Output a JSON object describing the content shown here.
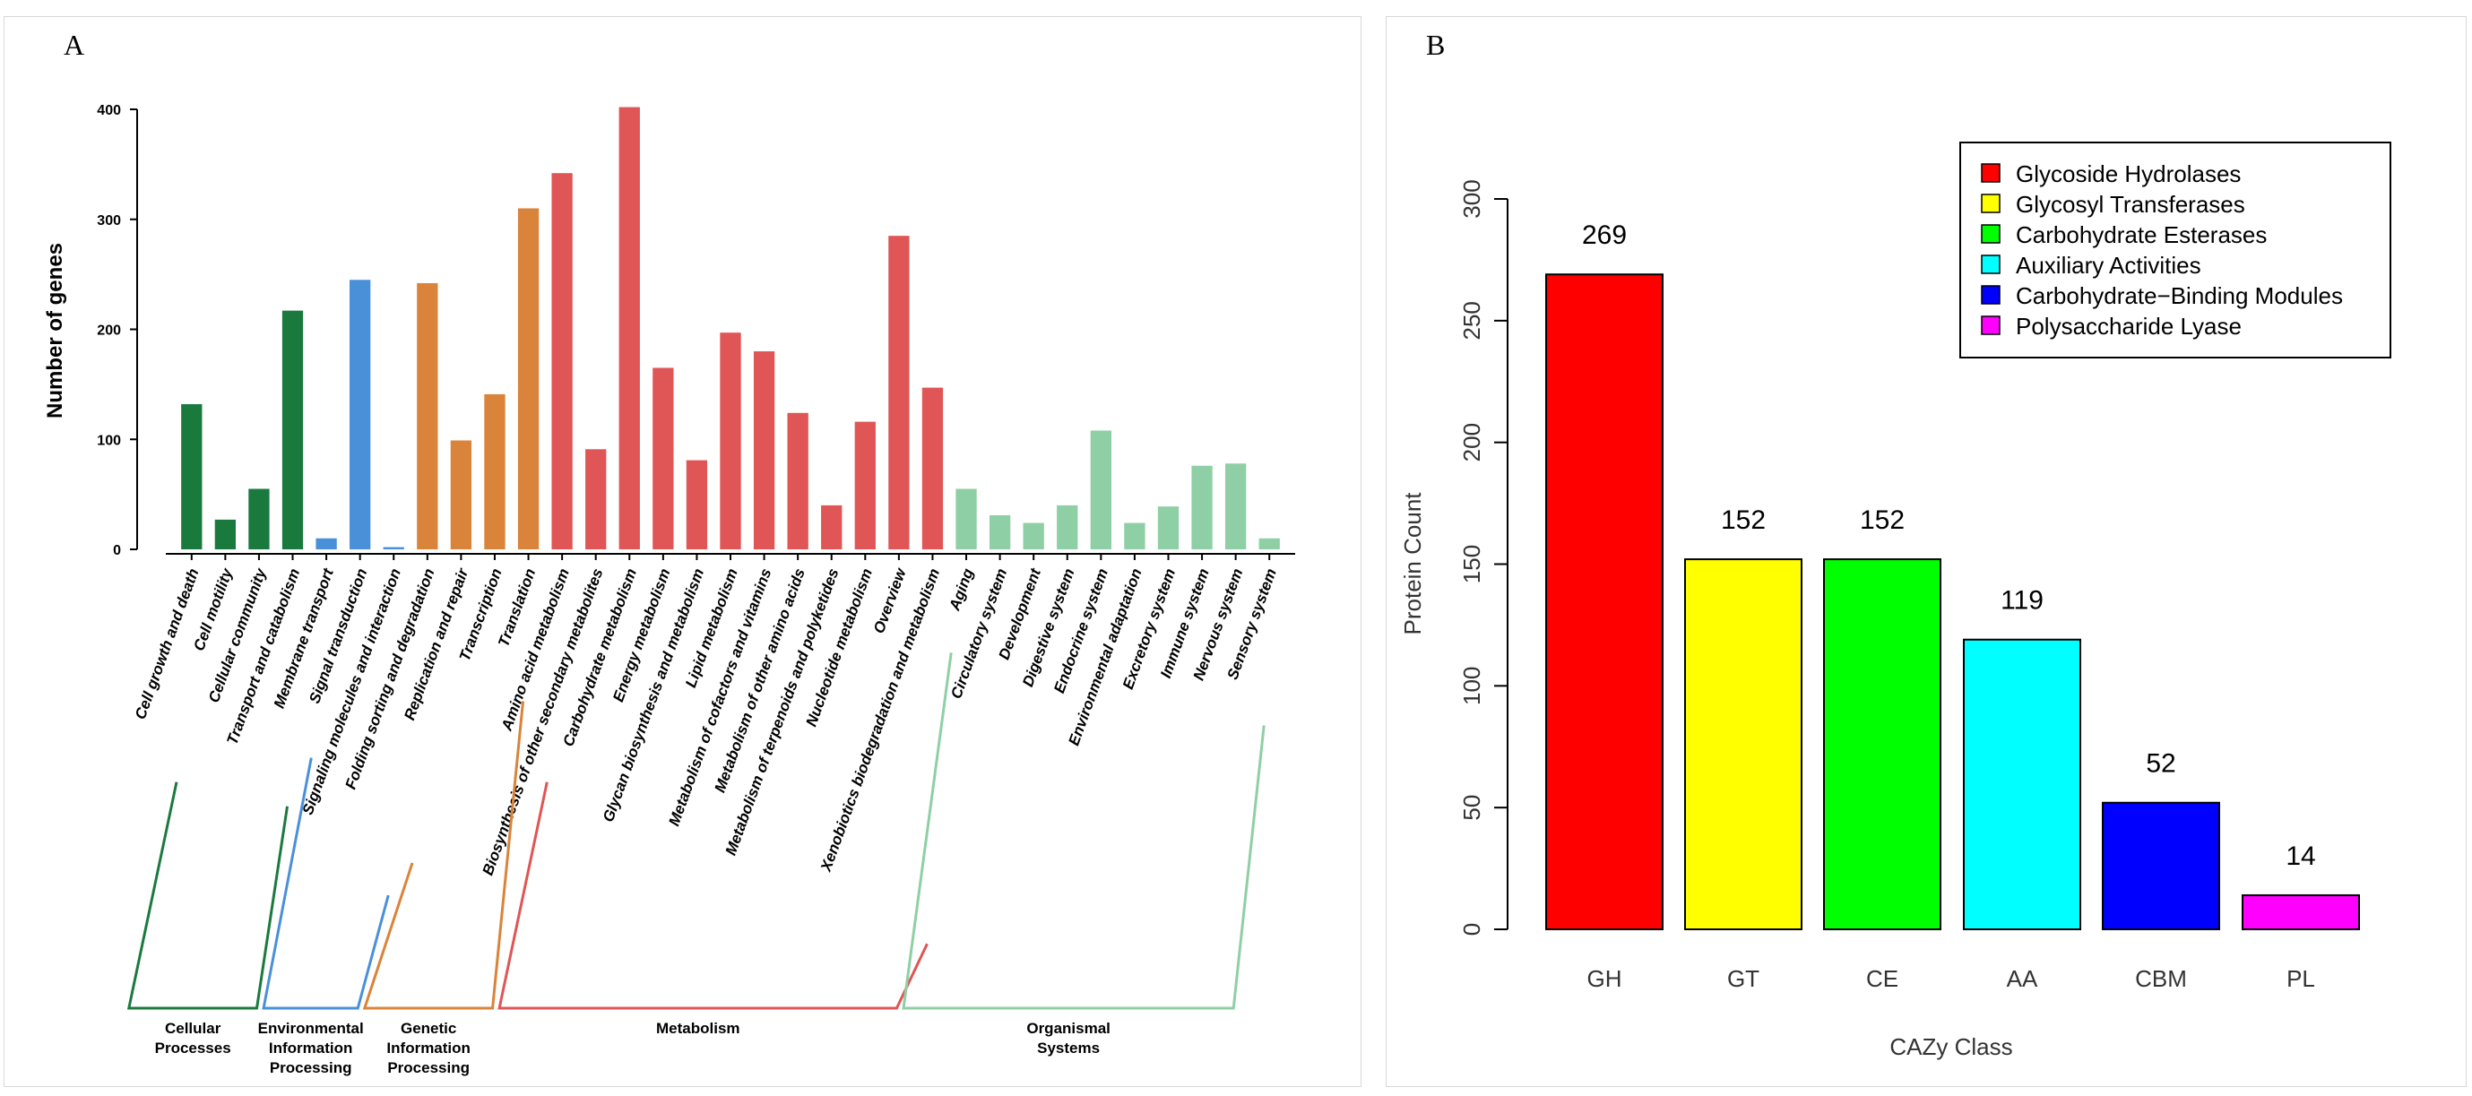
{
  "chart_data": [
    {
      "panel_label": "A",
      "type": "bar",
      "title": "",
      "xlabel": "",
      "ylabel": "Number of genes",
      "ylim": [
        0,
        400
      ],
      "yticks": [
        0,
        100,
        200,
        300,
        400
      ],
      "grid": false,
      "groups": [
        {
          "name": "Cellular Processes",
          "label_lines": [
            "Cellular",
            "Processes"
          ],
          "color": "#1a7a3e",
          "bracket_color": "#1a7a3e"
        },
        {
          "name": "Environmental Information Processing",
          "label_lines": [
            "Environmental",
            "Information",
            "Processing"
          ],
          "color": "#4a90d9",
          "bracket_color": "#4a90d9"
        },
        {
          "name": "Genetic Information Processing",
          "label_lines": [
            "Genetic",
            "Information",
            "Processing"
          ],
          "color": "#d9843a",
          "bracket_color": "#d9843a"
        },
        {
          "name": "Metabolism",
          "label_lines": [
            "Metabolism"
          ],
          "color": "#e05555",
          "bracket_color": "#e05555"
        },
        {
          "name": "Organismal Systems",
          "label_lines": [
            "Organismal",
            "Systems"
          ],
          "color": "#8fcfa5",
          "bracket_color": "#8fcfa5"
        }
      ],
      "categories": [
        {
          "label": "Cell growth and death",
          "value": 132,
          "group": 0
        },
        {
          "label": "Cell motility",
          "value": 27,
          "group": 0
        },
        {
          "label": "Cellular community",
          "value": 55,
          "group": 0
        },
        {
          "label": "Transport and catabolism",
          "value": 217,
          "group": 0
        },
        {
          "label": "Membrane transport",
          "value": 10,
          "group": 1
        },
        {
          "label": "Signal transduction",
          "value": 245,
          "group": 1
        },
        {
          "label": "Signaling molecules and interaction",
          "value": 2,
          "group": 1
        },
        {
          "label": "Folding sorting and degradation",
          "value": 242,
          "group": 2
        },
        {
          "label": "Replication and repair",
          "value": 99,
          "group": 2
        },
        {
          "label": "Transcription",
          "value": 141,
          "group": 2
        },
        {
          "label": "Translation",
          "value": 310,
          "group": 2
        },
        {
          "label": "Amino acid metabolism",
          "value": 342,
          "group": 3
        },
        {
          "label": "Biosynthesis of other secondary metabolites",
          "value": 91,
          "group": 3
        },
        {
          "label": "Carbohydrate metabolism",
          "value": 402,
          "group": 3
        },
        {
          "label": "Energy metabolism",
          "value": 165,
          "group": 3
        },
        {
          "label": "Glycan biosynthesis and metabolism",
          "value": 81,
          "group": 3
        },
        {
          "label": "Lipid metabolism",
          "value": 197,
          "group": 3
        },
        {
          "label": "Metabolism of cofactors and vitamins",
          "value": 180,
          "group": 3
        },
        {
          "label": "Metabolism of other amino acids",
          "value": 124,
          "group": 3
        },
        {
          "label": "Metabolism of terpenoids and polyketides",
          "value": 40,
          "group": 3
        },
        {
          "label": "Nucleotide metabolism",
          "value": 116,
          "group": 3
        },
        {
          "label": "Overview",
          "value": 285,
          "group": 3
        },
        {
          "label": "Xenobiotics biodegradation and metabolism",
          "value": 147,
          "group": 3
        },
        {
          "label": "Aging",
          "value": 55,
          "group": 4
        },
        {
          "label": "Circulatory system",
          "value": 31,
          "group": 4
        },
        {
          "label": "Development",
          "value": 24,
          "group": 4
        },
        {
          "label": "Digestive system",
          "value": 40,
          "group": 4
        },
        {
          "label": "Endocrine system",
          "value": 108,
          "group": 4
        },
        {
          "label": "Environmental adaptation",
          "value": 24,
          "group": 4
        },
        {
          "label": "Excretory system",
          "value": 39,
          "group": 4
        },
        {
          "label": "Immune system",
          "value": 76,
          "group": 4
        },
        {
          "label": "Nervous system",
          "value": 78,
          "group": 4
        },
        {
          "label": "Sensory system",
          "value": 10,
          "group": 4
        }
      ]
    },
    {
      "panel_label": "B",
      "type": "bar",
      "title": "",
      "xlabel": "CAZy Class",
      "ylabel": "Protein Count",
      "ylim": [
        0,
        300
      ],
      "yticks": [
        0,
        50,
        100,
        150,
        200,
        250,
        300
      ],
      "grid": false,
      "legend_position": "top-right",
      "categories": [
        "GH",
        "GT",
        "CE",
        "AA",
        "CBM",
        "PL"
      ],
      "values": [
        269,
        152,
        152,
        119,
        52,
        14
      ],
      "value_labels": [
        "269",
        "152",
        "152",
        "119",
        "52",
        "14"
      ],
      "colors": [
        "#ff0000",
        "#ffff00",
        "#00ff00",
        "#00ffff",
        "#0000ff",
        "#ff00ff"
      ],
      "legend": [
        "Glycoside Hydrolases",
        "Glycosyl Transferases",
        "Carbohydrate Esterases",
        "Auxiliary Activities",
        "Carbohydrate−Binding Modules",
        "Polysaccharide Lyase"
      ]
    }
  ]
}
